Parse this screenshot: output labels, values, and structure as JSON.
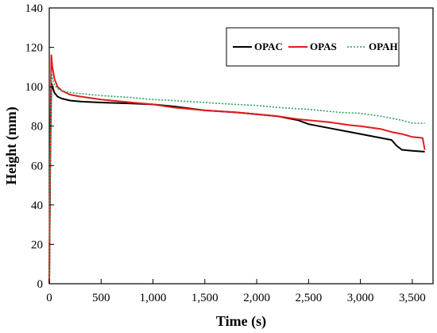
{
  "chart_data": {
    "type": "line",
    "xlabel": "Time (s)",
    "ylabel": "Height (mm)",
    "xlim": [
      0,
      3700
    ],
    "ylim": [
      0,
      140
    ],
    "xticks": [
      0,
      500,
      1000,
      1500,
      2000,
      2500,
      3000,
      3500
    ],
    "xtick_labels": [
      "0",
      "500",
      "1,000",
      "1,500",
      "2,000",
      "2,500",
      "3,000",
      "3,500"
    ],
    "yticks": [
      0,
      20,
      40,
      60,
      80,
      100,
      120,
      140
    ],
    "ytick_labels": [
      "0",
      "20",
      "40",
      "60",
      "80",
      "100",
      "120",
      "140"
    ],
    "grid": false,
    "legend_position": "top-right",
    "series": [
      {
        "name": "OPAC",
        "color": "#000000",
        "style": "solid",
        "x": [
          0,
          10,
          20,
          30,
          50,
          80,
          120,
          200,
          300,
          500,
          800,
          1000,
          1200,
          1500,
          1800,
          2000,
          2200,
          2400,
          2500,
          2700,
          2900,
          3000,
          3200,
          3300,
          3350,
          3400,
          3500,
          3620
        ],
        "y": [
          0,
          65,
          102,
          100,
          97,
          95,
          94,
          93,
          92.5,
          92,
          91.5,
          91,
          90,
          88,
          87,
          86,
          85,
          83,
          81,
          79,
          77,
          76,
          74,
          73,
          70,
          68,
          67.5,
          67
        ]
      },
      {
        "name": "OPAS",
        "color": "#e31a1c",
        "style": "solid",
        "x": [
          0,
          10,
          20,
          30,
          50,
          80,
          120,
          200,
          300,
          500,
          800,
          1000,
          1200,
          1500,
          1800,
          2000,
          2200,
          2400,
          2500,
          2700,
          2900,
          3000,
          3200,
          3300,
          3400,
          3500,
          3600,
          3620
        ],
        "y": [
          0,
          75,
          116,
          110,
          104,
          100,
          98,
          96,
          95,
          93.5,
          92,
          91,
          89.5,
          88,
          87,
          86,
          85,
          83.5,
          83,
          82,
          80.5,
          80,
          78.5,
          77,
          76,
          74.5,
          74,
          68
        ]
      },
      {
        "name": "OPAH",
        "color": "#2ca25f",
        "style": "dotted",
        "x": [
          0,
          10,
          20,
          30,
          50,
          80,
          120,
          200,
          300,
          500,
          800,
          1000,
          1200,
          1500,
          1800,
          2000,
          2200,
          2500,
          2800,
          3000,
          3200,
          3400,
          3500,
          3620
        ],
        "y": [
          0,
          70,
          108,
          104,
          101,
          99,
          98,
          97,
          96.5,
          95.5,
          94.5,
          93.5,
          93,
          92,
          91,
          90.5,
          89.5,
          88.5,
          87,
          86.5,
          85,
          83,
          81.5,
          81.5
        ]
      }
    ]
  }
}
